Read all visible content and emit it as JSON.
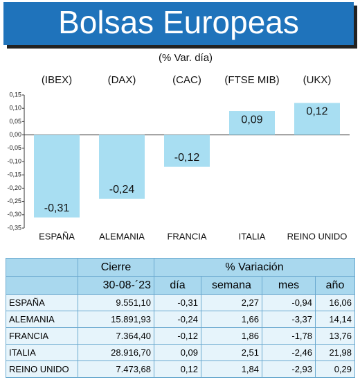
{
  "chart_data": {
    "type": "bar",
    "title": "Bolsas Europeas",
    "subtitle": "(% Var. día)",
    "index_labels": [
      "(IBEX)",
      "(DAX)",
      "(CAC)",
      "(FTSE MIB)",
      "(UKX)"
    ],
    "categories": [
      "ESPAÑA",
      "ALEMANIA",
      "FRANCIA",
      "ITALIA",
      "REINO UNIDO"
    ],
    "values": [
      -0.31,
      -0.24,
      -0.12,
      0.09,
      0.12
    ],
    "value_labels": [
      "-0,31",
      "-0,24",
      "-0,12",
      "0,09",
      "0,12"
    ],
    "color": "#a8def2",
    "ylim": [
      -0.35,
      0.15
    ],
    "yticks": [
      {
        "value": 0.15,
        "label": "0,15"
      },
      {
        "value": 0.1,
        "label": "0,10"
      },
      {
        "value": 0.05,
        "label": "0,05"
      },
      {
        "value": 0,
        "label": "0,00"
      },
      {
        "value": -0.05,
        "label": "-0,05"
      },
      {
        "value": -0.1,
        "label": "-0,10"
      },
      {
        "value": -0.15,
        "label": "-0,15"
      },
      {
        "value": -0.2,
        "label": "-0,20"
      },
      {
        "value": -0.25,
        "label": "-0,25"
      },
      {
        "value": -0.3,
        "label": "-0,30"
      },
      {
        "value": -0.35,
        "label": "-0,35"
      }
    ],
    "grid": false
  },
  "table": {
    "group_headers": [
      "Cierre",
      "% Variación"
    ],
    "column_headers": [
      "30-08-´23",
      "día",
      "semana",
      "mes",
      "año"
    ],
    "rows": [
      [
        "ESPAÑA",
        "9.551,10",
        "-0,31",
        "2,27",
        "-0,94",
        "16,06"
      ],
      [
        "ALEMANIA",
        "15.891,93",
        "-0,24",
        "1,66",
        "-3,37",
        "14,14"
      ],
      [
        "FRANCIA",
        "7.364,40",
        "-0,12",
        "1,86",
        "-1,78",
        "13,76"
      ],
      [
        "ITALIA",
        "28.916,70",
        "0,09",
        "2,51",
        "-2,46",
        "21,98"
      ],
      [
        "REINO UNIDO",
        "7.473,68",
        "0,12",
        "1,84",
        "-2,93",
        "0,29"
      ]
    ]
  }
}
